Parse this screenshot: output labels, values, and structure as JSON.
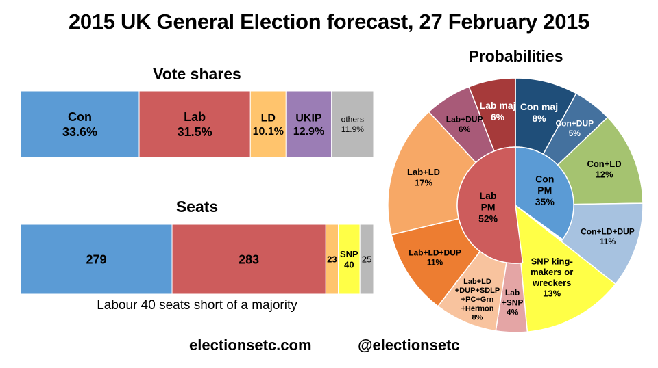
{
  "title": "2015 UK General Election forecast, 27 February 2015",
  "footer": {
    "site": "electionsetc.com",
    "handle": "@electionsetc"
  },
  "chart_data": [
    {
      "type": "bar",
      "orientation": "horizontal-stacked",
      "title": "Vote shares",
      "unit": "%",
      "categories": [
        "Con",
        "Lab",
        "LD",
        "UKIP",
        "others"
      ],
      "values": [
        33.6,
        31.5,
        10.1,
        12.9,
        11.9
      ],
      "display": [
        "33.6%",
        "31.5%",
        "10.1%",
        "12.9%",
        "11.9%"
      ],
      "colors": [
        "#5b9bd5",
        "#cd5c5c",
        "#ffc46d",
        "#9b7db5",
        "#b9b9b9"
      ]
    },
    {
      "type": "bar",
      "orientation": "horizontal-stacked",
      "title": "Seats",
      "categories": [
        "Con",
        "Lab",
        "LD",
        "SNP",
        "others"
      ],
      "values": [
        279,
        283,
        23,
        40,
        25
      ],
      "segment_labels": [
        "279",
        "283",
        "23",
        "SNP\n40",
        "25"
      ],
      "colors": [
        "#5b9bd5",
        "#cd5c5c",
        "#ffc46d",
        "#ffff47",
        "#b9b9b9"
      ],
      "caption": "Labour 40 seats short of a majority"
    },
    {
      "type": "pie",
      "title": "Probabilities",
      "unit": "%",
      "inner": [
        {
          "label": "Con\nPM",
          "value": 35,
          "display": "35%",
          "color": "#5b9bd5",
          "text_color": "#000000"
        },
        {
          "label": "SNP king-\nmakers or\nwreckers",
          "value": 13,
          "display": "13%",
          "color": "#ffff47",
          "text_color": "#000000"
        },
        {
          "label": "Lab\nPM",
          "value": 52,
          "display": "52%",
          "color": "#cd5c5c",
          "text_color": "#000000"
        }
      ],
      "outer": [
        {
          "label": "Con maj",
          "value": 8,
          "display": "8%",
          "color": "#1f4e79",
          "text_color": "#ffffff"
        },
        {
          "label": "Con+DUP",
          "value": 5,
          "display": "5%",
          "color": "#44719e",
          "text_color": "#ffffff"
        },
        {
          "label": "Con+LD",
          "value": 12,
          "display": "12%",
          "color": "#a5c370",
          "text_color": "#000000"
        },
        {
          "label": "Con+LD+DUP",
          "value": 11,
          "display": "11%",
          "color": "#a7c2e0",
          "text_color": "#000000"
        },
        {
          "label": "SNP king-\nmakers or\nwreckers",
          "value": 13,
          "display": "13%",
          "color": "#ffff47",
          "text_color": "#000000"
        },
        {
          "label": "Lab\n+SNP",
          "value": 4,
          "display": "4%",
          "color": "#e4a5a5",
          "text_color": "#000000"
        },
        {
          "label": "Lab+LD\n+DUP+SDLP\n+PC+Grn\n+Hermon",
          "value": 8,
          "display": "8%",
          "color": "#f8c39e",
          "text_color": "#000000"
        },
        {
          "label": "Lab+LD+DUP",
          "value": 11,
          "display": "11%",
          "color": "#ed7d31",
          "text_color": "#000000"
        },
        {
          "label": "Lab+LD",
          "value": 17,
          "display": "17%",
          "color": "#f7a866",
          "text_color": "#000000"
        },
        {
          "label": "Lab+DUP",
          "value": 6,
          "display": "6%",
          "color": "#a85a78",
          "text_color": "#000000"
        },
        {
          "label": "Lab maj",
          "value": 6,
          "display": "6%",
          "color": "#a63a3a",
          "text_color": "#ffffff"
        }
      ]
    }
  ]
}
